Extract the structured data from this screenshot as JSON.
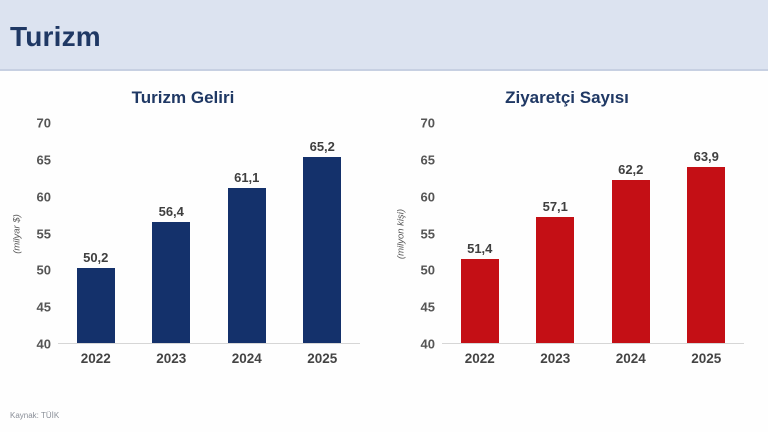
{
  "slide": {
    "title": "Turizm",
    "source_note": "Kaynak: TÜİK"
  },
  "colors": {
    "header_bg": "#dce3f0",
    "title_navy": "#1f3864",
    "bar_navy": "#14316b",
    "bar_red": "#c40f15",
    "axis_text": "#555555",
    "value_text": "#3f3f3f",
    "baseline": "#d6d6d6"
  },
  "chart_data": [
    {
      "type": "bar",
      "title": "Turizm Geliri",
      "ylabel": "(milyar $)",
      "categories": [
        "2022",
        "2023",
        "2024",
        "2025"
      ],
      "values": [
        50.2,
        56.4,
        61.1,
        65.2
      ],
      "value_labels": [
        "50,2",
        "56,4",
        "61,1",
        "65,2"
      ],
      "ylim": [
        40,
        70
      ],
      "yticks": [
        70,
        65,
        60,
        55,
        50,
        45,
        40
      ],
      "bar_color": "#14316b",
      "grid": false,
      "legend": "none"
    },
    {
      "type": "bar",
      "title": "Ziyaretçi Sayısı",
      "ylabel": "(milyon kişi)",
      "categories": [
        "2022",
        "2023",
        "2024",
        "2025"
      ],
      "values": [
        51.4,
        57.1,
        62.2,
        63.9
      ],
      "value_labels": [
        "51,4",
        "57,1",
        "62,2",
        "63,9"
      ],
      "ylim": [
        40,
        70
      ],
      "yticks": [
        70,
        65,
        60,
        55,
        50,
        45,
        40
      ],
      "bar_color": "#c40f15",
      "grid": false,
      "legend": "none"
    }
  ]
}
